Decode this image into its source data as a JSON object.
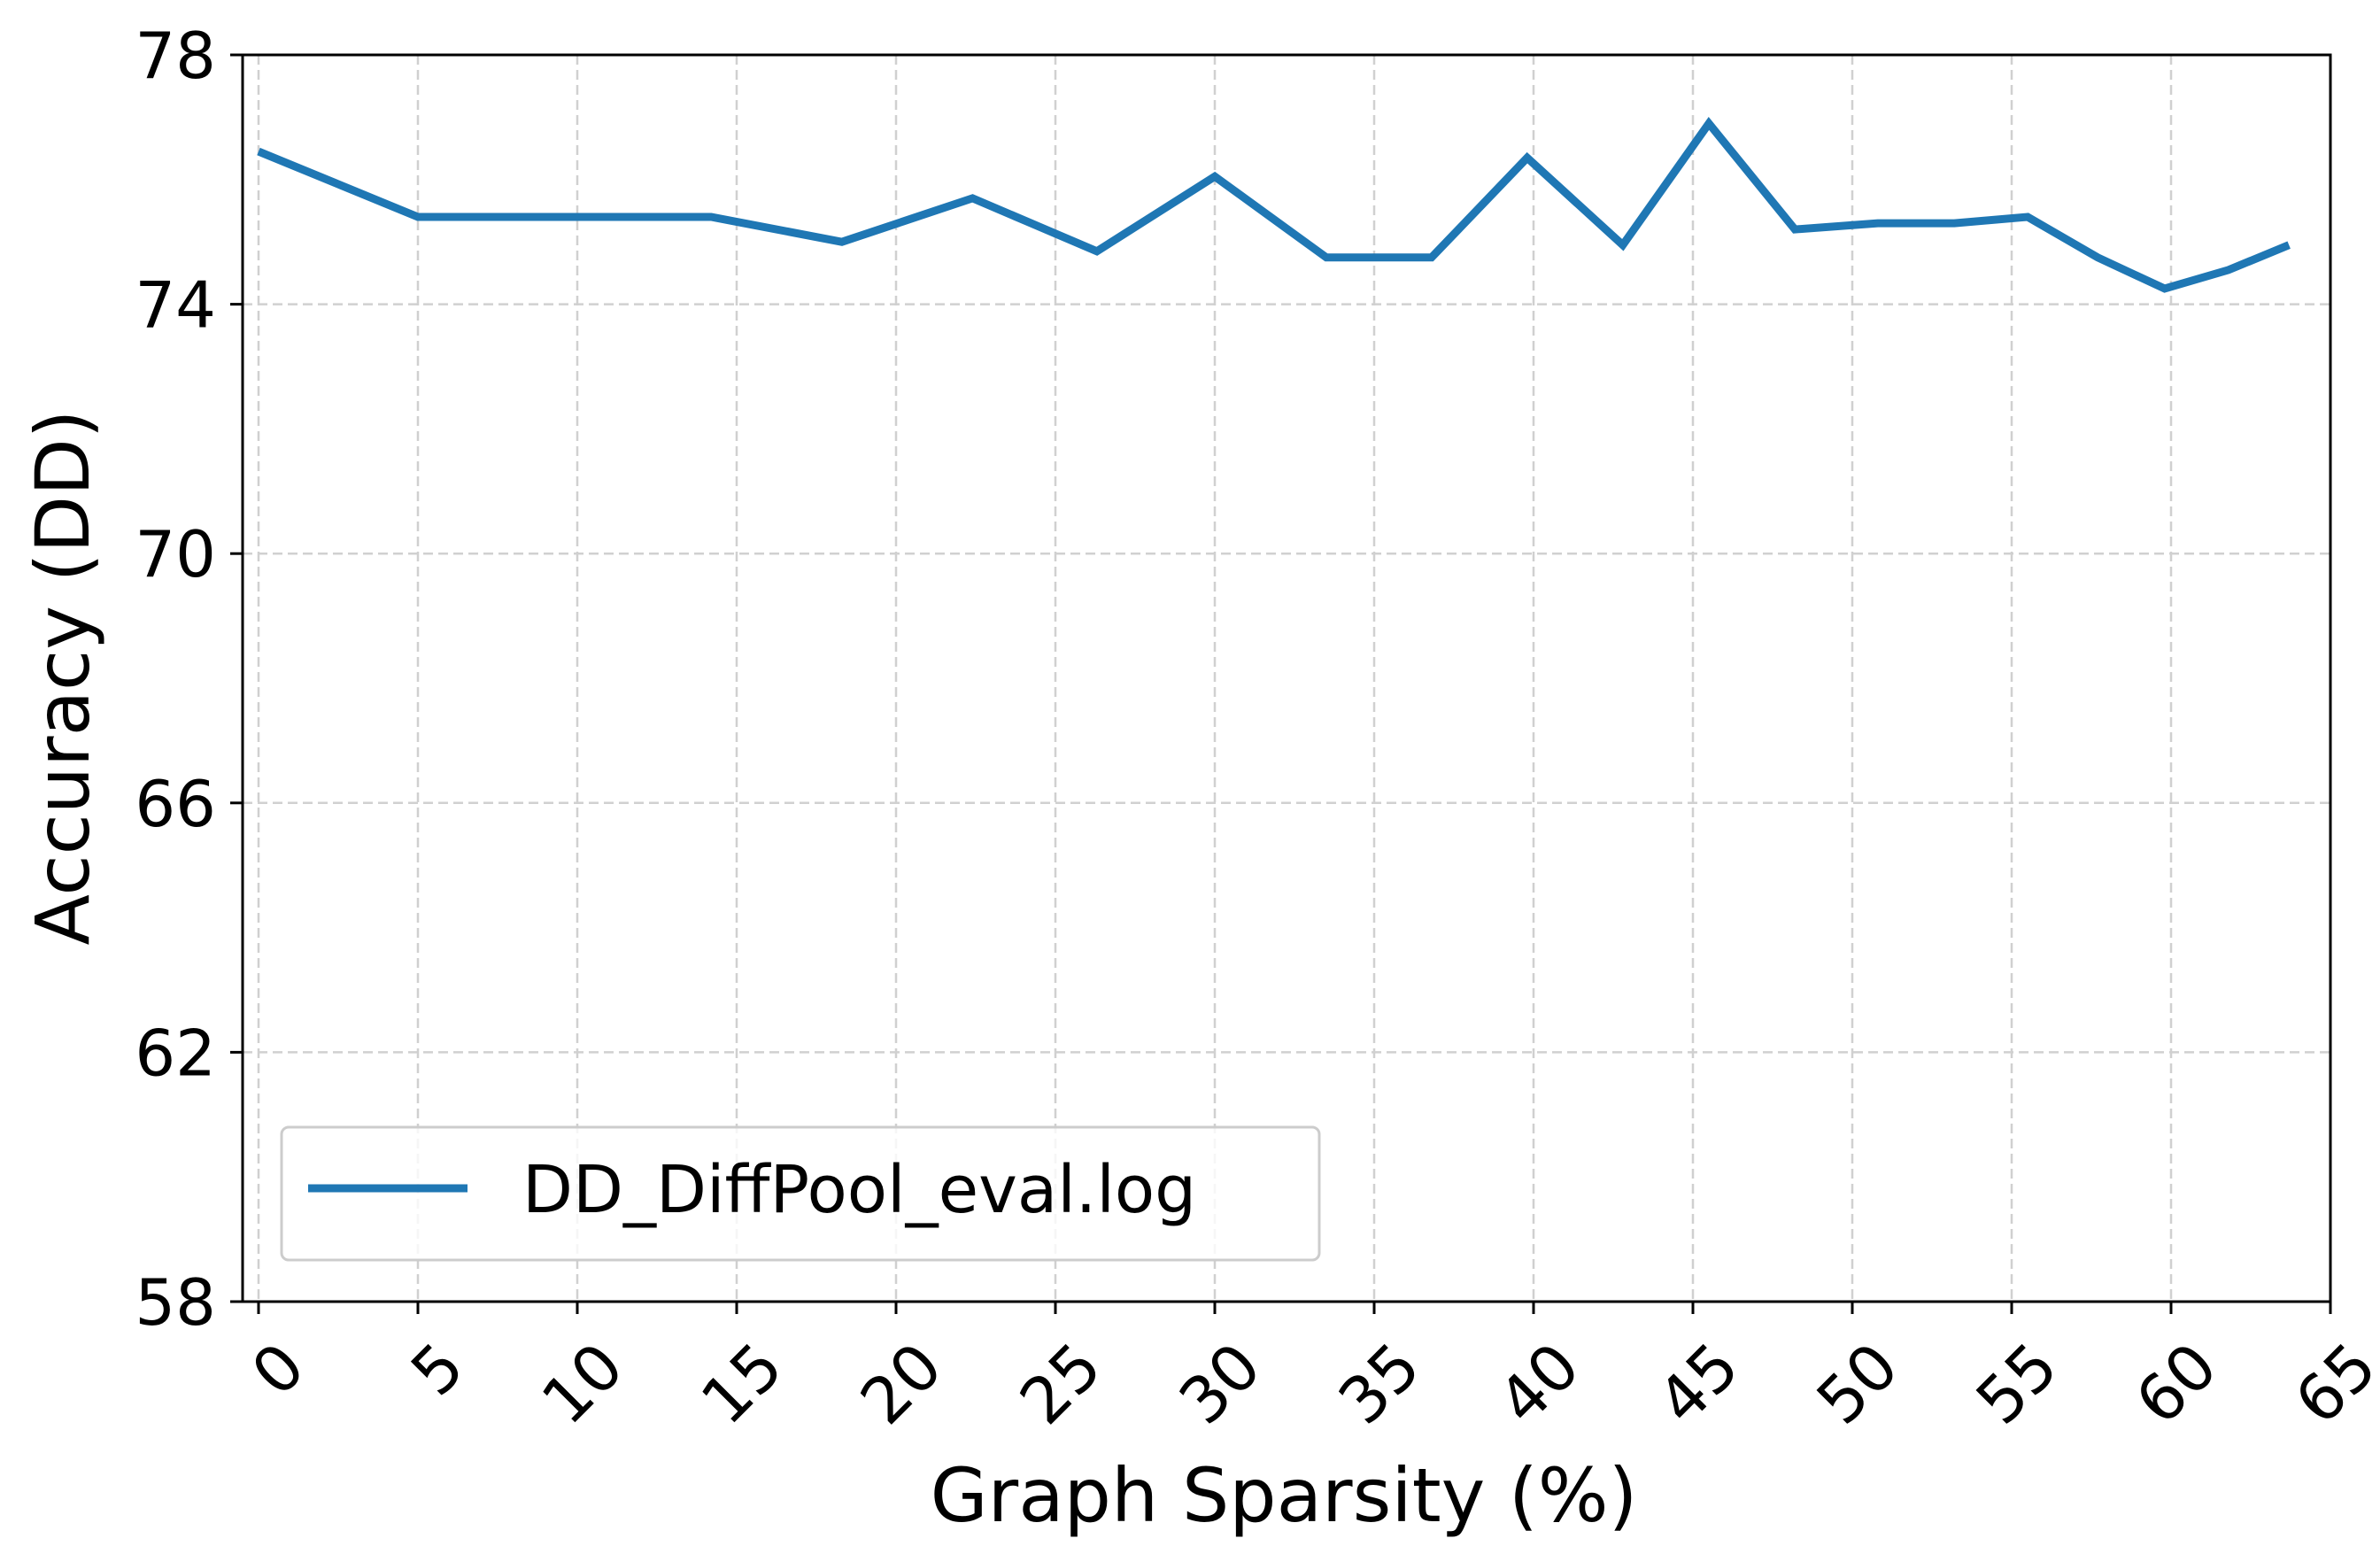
{
  "colors": {
    "series": "#1f77b4",
    "grid": "#d0d0d0",
    "axis": "#000000"
  },
  "chart_data": {
    "type": "line",
    "title": "",
    "xlabel": "Graph Sparsity (%)",
    "ylabel": "Accuracy (DD)",
    "xlim": [
      -0.5,
      65
    ],
    "ylim": [
      58,
      78
    ],
    "xticks": [
      0,
      5,
      10,
      15,
      20,
      25,
      30,
      35,
      40,
      45,
      50,
      55,
      60,
      65
    ],
    "xtick_labels": [
      "0",
      "5",
      "10",
      "15",
      "20",
      "25",
      "30",
      "35",
      "40",
      "45",
      "50",
      "55",
      "60",
      "65"
    ],
    "xtick_rotation": 45,
    "yticks": [
      58,
      62,
      66,
      70,
      74,
      78
    ],
    "ytick_labels": [
      "58",
      "62",
      "66",
      "70",
      "74",
      "78"
    ],
    "grid": true,
    "legend_position": "lower-left",
    "series": [
      {
        "name": "DD_DiffPool_eval.log",
        "x": [
          0,
          5,
          10,
          14.2,
          18.3,
          22.4,
          26.3,
          30,
          33.5,
          36.8,
          39.8,
          42.8,
          45.5,
          48.2,
          50.8,
          53.2,
          55.5,
          57.7,
          59.8,
          61.8,
          63.7
        ],
        "y": [
          76.45,
          75.4,
          75.4,
          75.4,
          75.0,
          75.7,
          74.85,
          76.05,
          74.75,
          74.75,
          76.35,
          74.95,
          76.9,
          75.2,
          75.3,
          75.3,
          75.4,
          74.75,
          74.25,
          74.55,
          74.95
        ]
      }
    ]
  }
}
